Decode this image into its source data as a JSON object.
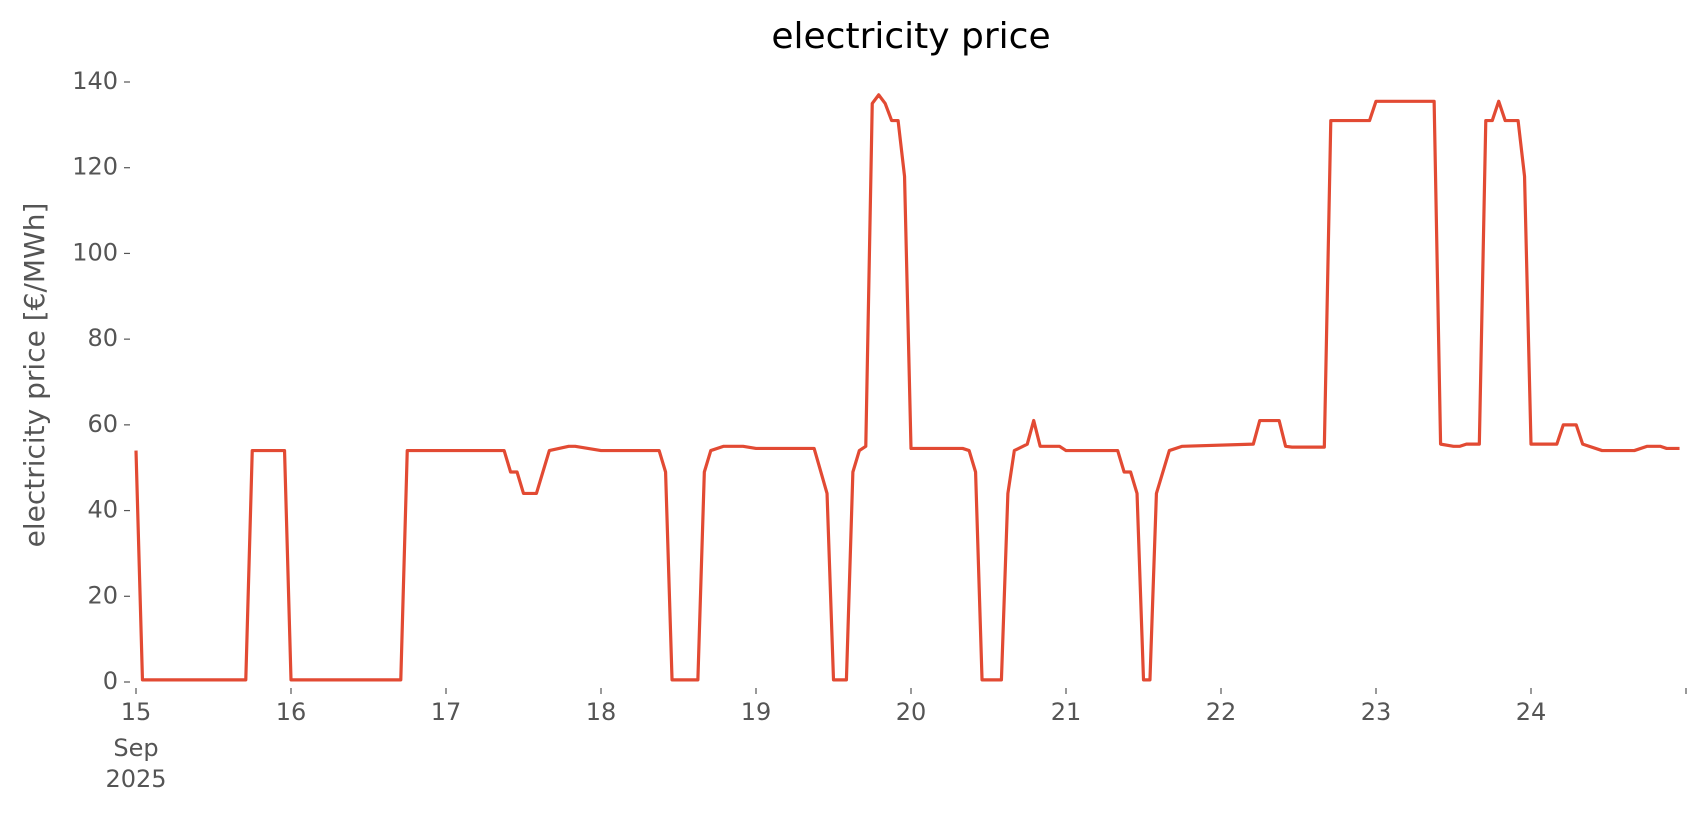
{
  "chart_data": {
    "type": "line",
    "title": "electricity price",
    "ylabel": "electricity price [€/MWh]",
    "x": [
      "2025-09-15T00:00",
      "2025-09-15T01:00",
      "2025-09-15T17:00",
      "2025-09-15T18:00",
      "2025-09-15T19:00",
      "2025-09-15T23:00",
      "2025-09-16T00:00",
      "2025-09-16T17:00",
      "2025-09-16T18:00",
      "2025-09-17T09:00",
      "2025-09-17T10:00",
      "2025-09-17T11:00",
      "2025-09-17T12:00",
      "2025-09-17T14:00",
      "2025-09-17T16:00",
      "2025-09-17T19:00",
      "2025-09-17T20:00",
      "2025-09-18T00:00",
      "2025-09-18T09:00",
      "2025-09-18T10:00",
      "2025-09-18T11:00",
      "2025-09-18T15:00",
      "2025-09-18T16:00",
      "2025-09-18T17:00",
      "2025-09-18T19:00",
      "2025-09-18T22:00",
      "2025-09-19T00:00",
      "2025-09-19T09:00",
      "2025-09-19T11:00",
      "2025-09-19T12:00",
      "2025-09-19T14:00",
      "2025-09-19T15:00",
      "2025-09-19T16:00",
      "2025-09-19T17:00",
      "2025-09-19T18:00",
      "2025-09-19T19:00",
      "2025-09-19T20:00",
      "2025-09-19T21:00",
      "2025-09-19T22:00",
      "2025-09-19T23:00",
      "2025-09-20T00:00",
      "2025-09-20T08:00",
      "2025-09-20T09:00",
      "2025-09-20T10:00",
      "2025-09-20T11:00",
      "2025-09-20T14:00",
      "2025-09-20T15:00",
      "2025-09-20T16:00",
      "2025-09-20T18:00",
      "2025-09-20T19:00",
      "2025-09-20T20:00",
      "2025-09-20T23:00",
      "2025-09-21T00:00",
      "2025-09-21T08:00",
      "2025-09-21T09:00",
      "2025-09-21T10:00",
      "2025-09-21T11:00",
      "2025-09-21T12:00",
      "2025-09-21T13:00",
      "2025-09-21T14:00",
      "2025-09-21T16:00",
      "2025-09-21T18:00",
      "2025-09-22T05:00",
      "2025-09-22T06:00",
      "2025-09-22T09:00",
      "2025-09-22T10:00",
      "2025-09-22T11:00",
      "2025-09-22T16:00",
      "2025-09-22T17:00",
      "2025-09-22T23:00",
      "2025-09-23T00:00",
      "2025-09-23T09:00",
      "2025-09-23T10:00",
      "2025-09-23T12:00",
      "2025-09-23T13:00",
      "2025-09-23T14:00",
      "2025-09-23T16:00",
      "2025-09-23T17:00",
      "2025-09-23T18:00",
      "2025-09-23T19:00",
      "2025-09-23T20:00",
      "2025-09-23T22:00",
      "2025-09-23T23:00",
      "2025-09-24T00:00",
      "2025-09-24T04:00",
      "2025-09-24T05:00",
      "2025-09-24T07:00",
      "2025-09-24T08:00",
      "2025-09-24T11:00",
      "2025-09-24T16:00",
      "2025-09-24T18:00",
      "2025-09-24T20:00",
      "2025-09-24T21:00",
      "2025-09-24T23:00"
    ],
    "values": [
      54,
      0.5,
      0.5,
      54,
      54,
      54,
      0.5,
      0.5,
      54,
      54,
      49,
      49,
      44,
      44,
      54,
      55,
      55,
      54,
      54,
      49,
      0.5,
      0.5,
      49,
      54,
      55,
      55,
      54.5,
      54.5,
      44,
      0.5,
      0.5,
      49,
      54,
      55,
      135,
      137,
      135,
      131,
      131,
      118,
      54.5,
      54.5,
      54,
      49,
      0.5,
      0.5,
      44,
      54,
      55.5,
      61,
      55,
      55,
      54,
      54,
      49,
      49,
      44,
      0.5,
      0.5,
      44,
      54,
      55,
      55.5,
      61,
      61,
      55,
      54.8,
      54.8,
      131,
      131,
      135.5,
      135.5,
      55.5,
      55,
      55,
      55.5,
      55.5,
      131,
      131,
      135.5,
      131,
      131,
      118,
      55.5,
      55.5,
      60,
      60,
      55.5,
      54,
      54,
      55,
      55,
      54.5,
      54.5
    ],
    "color": "#e24a33",
    "xlim": [
      "2025-09-15T00:00",
      "2025-09-25T00:00"
    ],
    "xticks": [
      {
        "value": "2025-09-15T00:00",
        "label": "15"
      },
      {
        "value": "2025-09-16T00:00",
        "label": "16"
      },
      {
        "value": "2025-09-17T00:00",
        "label": "17"
      },
      {
        "value": "2025-09-18T00:00",
        "label": "18"
      },
      {
        "value": "2025-09-19T00:00",
        "label": "19"
      },
      {
        "value": "2025-09-20T00:00",
        "label": "20"
      },
      {
        "value": "2025-09-21T00:00",
        "label": "21"
      },
      {
        "value": "2025-09-22T00:00",
        "label": "22"
      },
      {
        "value": "2025-09-23T00:00",
        "label": "23"
      },
      {
        "value": "2025-09-24T00:00",
        "label": "24"
      },
      {
        "value": "2025-09-25T00:00",
        "label": null
      }
    ],
    "x_tick_sublabels": [
      "Sep",
      "2025"
    ],
    "ylim": [
      0,
      140
    ],
    "yticks": [
      0,
      20,
      40,
      60,
      80,
      100,
      120,
      140
    ],
    "grid": false
  }
}
